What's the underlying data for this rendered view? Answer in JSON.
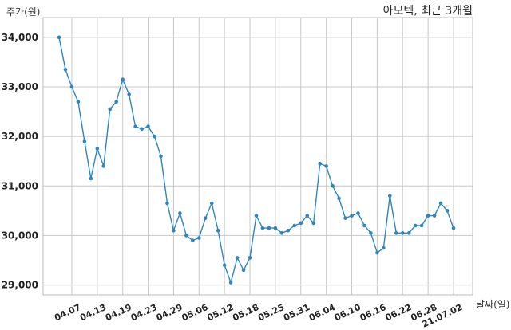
{
  "chart_data": {
    "type": "line",
    "title": "아모텍, 최근 3개월",
    "ylabel": "주가(원)",
    "xlabel": "날짜(일)",
    "ylim": [
      28800,
      34400
    ],
    "yticks": [
      29000,
      30000,
      31000,
      32000,
      33000,
      34000
    ],
    "ytick_labels": [
      "29,000",
      "30,000",
      "31,000",
      "32,000",
      "33,000",
      "34,000"
    ],
    "xtick_labels": [
      "04.07",
      "04.13",
      "04.19",
      "04.23",
      "04.29",
      "05.06",
      "05.12",
      "05.18",
      "05.25",
      "05.31",
      "06.04",
      "06.10",
      "06.16",
      "06.22",
      "06.28",
      "21.07.02"
    ],
    "xtick_index": [
      2,
      6,
      10,
      14,
      18,
      22,
      26,
      30,
      34,
      38,
      42,
      46,
      50,
      54,
      58,
      62
    ],
    "grid": true,
    "color": "#2e86c1",
    "series": [
      {
        "values": [
          34000,
          33350,
          33000,
          32700,
          31900,
          31150,
          31750,
          31400,
          32550,
          32700,
          33150,
          32850,
          32200,
          32150,
          32200,
          32000,
          31600,
          30650,
          30100,
          30450,
          30000,
          29900,
          29950,
          30350,
          30650,
          30100,
          29400,
          29050,
          29550,
          29300,
          29550,
          30400,
          30150,
          30150,
          30150,
          30050,
          30100,
          30200,
          30250,
          30400,
          30250,
          31450,
          31400,
          31000,
          30750,
          30350,
          30400,
          30450,
          30200,
          30050,
          29650,
          29750,
          30800,
          30050,
          30050,
          30050,
          30200,
          30200,
          30400,
          30400,
          30650,
          30500,
          30150
        ]
      }
    ]
  }
}
